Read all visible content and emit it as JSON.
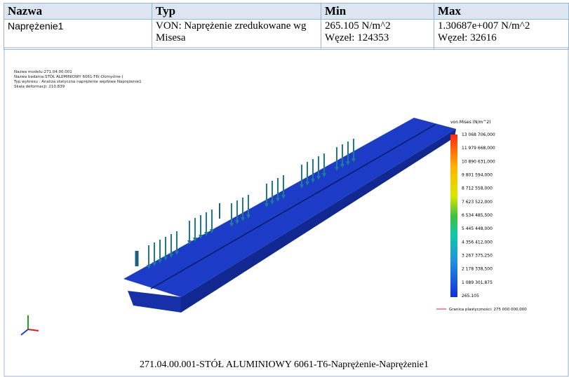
{
  "table": {
    "headers": [
      "Nazwa",
      "Typ",
      "Min",
      "Max"
    ],
    "rows": [
      [
        "Naprężenie1",
        "VON: Naprężenie zredukowane wg Misesa",
        [
          "265.105 N/m^2",
          "Węzeł: 124353"
        ],
        [
          "1.30687e+007 N/m^2",
          "Węzeł: 32616"
        ]
      ]
    ]
  },
  "figure": {
    "info": [
      "Nazwa modelu:271.04.00.001",
      "Nazwa badania:STÓŁ ALUMINIOWY 6061-T6(-Domyślne-)",
      "Typ wykresu : Analiza statyczna naprężenie węzłowe Naprężenie1",
      "Skala deformacji: 210.839"
    ],
    "legend": {
      "title": "von Mises (N/m^2)",
      "labels": [
        "13 068 706,000",
        "11 979 668,000",
        "10 890 631,000",
        "9 801 594,000",
        "8 712 558,000",
        "7 623 522,000",
        "6 534 485,500",
        "5 445 448,000",
        "4 356 412,000",
        "3 267 375,250",
        "2 178 338,500",
        "1 089 301,875",
        "265.105"
      ],
      "yield": "Granica plastyczności: 275 000 000,000"
    },
    "caption": "271.04.00.001-STÓŁ ALUMINIOWY 6061-T6-Naprężenie-Naprężenie1"
  }
}
